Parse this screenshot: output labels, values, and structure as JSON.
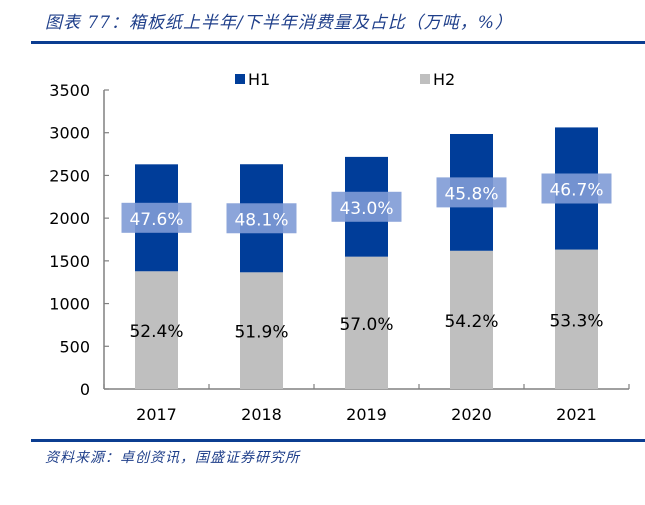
{
  "title": "图表 77：箱板纸上半年/下半年消费量及占比（万吨，%）",
  "source": "资料来源：卓创资讯，国盛证券研究所",
  "chart_data": {
    "type": "bar",
    "stacked": true,
    "categories": [
      "2017",
      "2018",
      "2019",
      "2020",
      "2021"
    ],
    "series": [
      {
        "name": "H2",
        "color": "#bfbfbf",
        "values": [
          1378,
          1366,
          1549,
          1618,
          1632
        ],
        "labels": [
          "52.4%",
          "51.9%",
          "57.0%",
          "54.2%",
          "53.3%"
        ]
      },
      {
        "name": "H1",
        "color": "#003d99",
        "values": [
          1252,
          1265,
          1168,
          1367,
          1430
        ],
        "labels": [
          "47.6%",
          "48.1%",
          "43.0%",
          "45.8%",
          "46.7%"
        ]
      }
    ],
    "ylim": [
      0,
      3500
    ],
    "yticks": [
      "0",
      "500",
      "1000",
      "1500",
      "2000",
      "2500",
      "3000",
      "3500"
    ],
    "legend": "top",
    "grid": false,
    "label_box_color": "#7f9bd6"
  }
}
